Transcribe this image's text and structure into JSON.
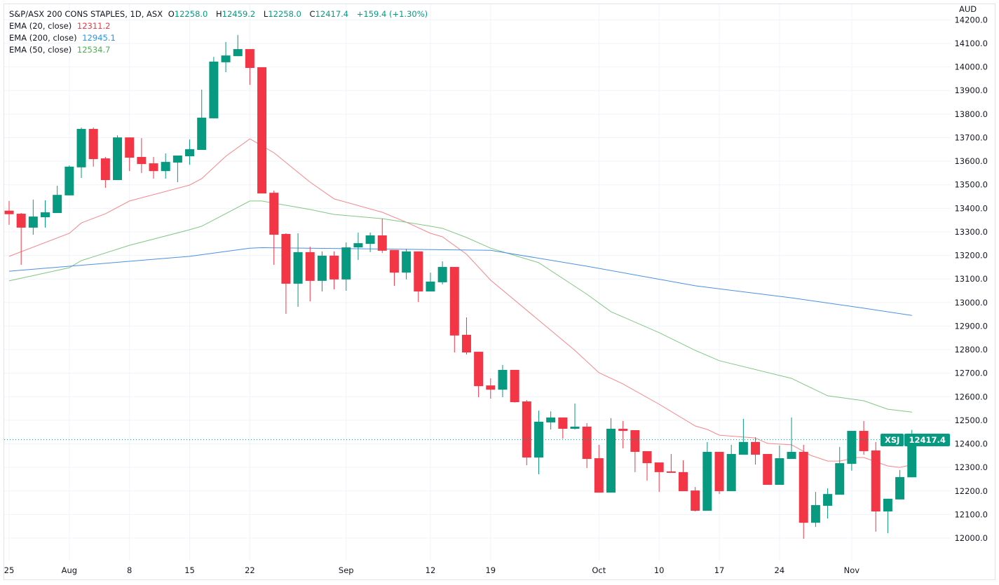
{
  "header": {
    "symbol_title": "S&P/ASX 200 CONS STAPLES, 1D, ASX",
    "open_label": "O",
    "open": "12258.0",
    "high_label": "H",
    "high": "12459.2",
    "low_label": "L",
    "low": "12258.0",
    "close_label": "C",
    "close": "12417.4",
    "change": "+159.4 (+1.30%)"
  },
  "indicators": [
    {
      "label": "EMA (20, close)",
      "value": "12311.2",
      "color": "#f23645"
    },
    {
      "label": "EMA (200, close)",
      "value": "12945.1",
      "color": "#2196f3"
    },
    {
      "label": "EMA (50, close)",
      "value": "12534.7",
      "color": "#4caf50"
    }
  ],
  "price_axis": {
    "currency": "AUD"
  },
  "last_price": {
    "ticker": "XSJ",
    "value": "12417.4",
    "price": 12417.4
  },
  "colors": {
    "up": "#089981",
    "down": "#f23645",
    "ema20": "#f7868a",
    "ema50": "#81c784",
    "ema200": "#4a90e2",
    "grid": "#f0f3fa"
  },
  "chart_data": {
    "type": "candlestick",
    "title": "S&P/ASX 200 CONS STAPLES, 1D, ASX",
    "ylim": [
      11950,
      14250
    ],
    "yticks": [
      12000,
      12100,
      12200,
      12300,
      12400,
      12500,
      12600,
      12700,
      12800,
      12900,
      13000,
      13100,
      13200,
      13300,
      13400,
      13500,
      13600,
      13700,
      13800,
      13900,
      14000,
      14100,
      14200
    ],
    "xticks": [
      {
        "index": 0,
        "label": "25"
      },
      {
        "index": 5,
        "label": "Aug"
      },
      {
        "index": 10,
        "label": "8"
      },
      {
        "index": 15,
        "label": "15"
      },
      {
        "index": 20,
        "label": "22"
      },
      {
        "index": 28,
        "label": "Sep"
      },
      {
        "index": 35,
        "label": "12"
      },
      {
        "index": 40,
        "label": "19"
      },
      {
        "index": 49,
        "label": "Oct"
      },
      {
        "index": 54,
        "label": "10"
      },
      {
        "index": 59,
        "label": "17"
      },
      {
        "index": 64,
        "label": "24"
      },
      {
        "index": 70,
        "label": "Nov"
      }
    ],
    "ohlc": [
      [
        13390,
        13431,
        13330,
        13375
      ],
      [
        13377,
        13380,
        13160,
        13318
      ],
      [
        13318,
        13437,
        13288,
        13365
      ],
      [
        13362,
        13434,
        13318,
        13383
      ],
      [
        13380,
        13496,
        13380,
        13457
      ],
      [
        13455,
        13582,
        13455,
        13577
      ],
      [
        13574,
        13743,
        13529,
        13737
      ],
      [
        13737,
        13743,
        13577,
        13609
      ],
      [
        13612,
        13618,
        13487,
        13520
      ],
      [
        13520,
        13710,
        13520,
        13701
      ],
      [
        13701,
        13701,
        13558,
        13615
      ],
      [
        13618,
        13698,
        13550,
        13588
      ],
      [
        13591,
        13618,
        13526,
        13558
      ],
      [
        13558,
        13633,
        13526,
        13597
      ],
      [
        13594,
        13624,
        13511,
        13624
      ],
      [
        13621,
        13692,
        13585,
        13651
      ],
      [
        13648,
        13904,
        13648,
        13785
      ],
      [
        13782,
        14043,
        13782,
        14023
      ],
      [
        14020,
        14106,
        13978,
        14049
      ],
      [
        14046,
        14136,
        14046,
        14076
      ],
      [
        14076,
        14076,
        13924,
        13996
      ],
      [
        13999,
        13999,
        13463,
        13463
      ],
      [
        13466,
        13475,
        13160,
        13288
      ],
      [
        13291,
        13294,
        12952,
        13080
      ],
      [
        13080,
        13294,
        12982,
        13214
      ],
      [
        13214,
        13237,
        13005,
        13092
      ],
      [
        13092,
        13217,
        13047,
        13199
      ],
      [
        13199,
        13217,
        13056,
        13098
      ],
      [
        13098,
        13255,
        13050,
        13234
      ],
      [
        13234,
        13297,
        13181,
        13252
      ],
      [
        13249,
        13297,
        13214,
        13285
      ],
      [
        13285,
        13356,
        13211,
        13220
      ],
      [
        13223,
        13223,
        13071,
        13127
      ],
      [
        13127,
        13228,
        13098,
        13217
      ],
      [
        13217,
        13217,
        13002,
        13047
      ],
      [
        13047,
        13127,
        13047,
        13089
      ],
      [
        13086,
        13175,
        13077,
        13151
      ],
      [
        13151,
        13151,
        12788,
        12860
      ],
      [
        12863,
        12937,
        12779,
        12788
      ],
      [
        12791,
        12791,
        12598,
        12645
      ],
      [
        12648,
        12678,
        12592,
        12630
      ],
      [
        12630,
        12735,
        12598,
        12714
      ],
      [
        12714,
        12714,
        12575,
        12577
      ],
      [
        12580,
        12586,
        12309,
        12342
      ],
      [
        12342,
        12541,
        12271,
        12494
      ],
      [
        12491,
        12538,
        12461,
        12512
      ],
      [
        12512,
        12512,
        12422,
        12464
      ],
      [
        12464,
        12571,
        12461,
        12473
      ],
      [
        12473,
        12488,
        12297,
        12336
      ],
      [
        12339,
        12396,
        12193,
        12193
      ],
      [
        12193,
        12509,
        12193,
        12464
      ],
      [
        12464,
        12497,
        12381,
        12455
      ],
      [
        12458,
        12458,
        12280,
        12366
      ],
      [
        12369,
        12369,
        12244,
        12318
      ],
      [
        12321,
        12321,
        12196,
        12280
      ],
      [
        12283,
        12357,
        12277,
        12277
      ],
      [
        12280,
        12330,
        12199,
        12199
      ],
      [
        12202,
        12217,
        12113,
        12116
      ],
      [
        12116,
        12408,
        12116,
        12366
      ],
      [
        12366,
        12366,
        12187,
        12199
      ],
      [
        12199,
        12396,
        12199,
        12357
      ],
      [
        12354,
        12506,
        12354,
        12408
      ],
      [
        12408,
        12428,
        12312,
        12354
      ],
      [
        12357,
        12357,
        12226,
        12226
      ],
      [
        12226,
        12393,
        12226,
        12339
      ],
      [
        12336,
        12512,
        12336,
        12366
      ],
      [
        12366,
        12396,
        11997,
        12065
      ],
      [
        12065,
        12196,
        12047,
        12140
      ],
      [
        12137,
        12211,
        12083,
        12187
      ],
      [
        12184,
        12387,
        12184,
        12318
      ],
      [
        12315,
        12455,
        12286,
        12455
      ],
      [
        12455,
        12497,
        12354,
        12369
      ],
      [
        12372,
        12408,
        12027,
        12113
      ],
      [
        12113,
        12167,
        12021,
        12167
      ],
      [
        12164,
        12289,
        12164,
        12259
      ],
      [
        12258,
        12459.2,
        12258,
        12417.4
      ]
    ],
    "series": [
      {
        "name": "EMA (20, close)",
        "key": "ema20",
        "points": [
          [
            0,
            13196
          ],
          [
            5,
            13294
          ],
          [
            6,
            13338
          ],
          [
            8,
            13377
          ],
          [
            10,
            13431
          ],
          [
            15,
            13499
          ],
          [
            16,
            13526
          ],
          [
            18,
            13621
          ],
          [
            20,
            13695
          ],
          [
            22,
            13636
          ],
          [
            25,
            13511
          ],
          [
            27,
            13440
          ],
          [
            31,
            13383
          ],
          [
            33,
            13341
          ],
          [
            35,
            13294
          ],
          [
            36,
            13279
          ],
          [
            38,
            13205
          ],
          [
            40,
            13095
          ],
          [
            47,
            12797
          ],
          [
            49,
            12702
          ],
          [
            51,
            12654
          ],
          [
            54,
            12568
          ],
          [
            57,
            12476
          ],
          [
            58,
            12461
          ],
          [
            59,
            12437
          ],
          [
            62,
            12425
          ],
          [
            63,
            12402
          ],
          [
            65,
            12396
          ],
          [
            66.6,
            12351
          ],
          [
            68,
            12327
          ],
          [
            69,
            12327
          ],
          [
            70.5,
            12342
          ],
          [
            71,
            12342
          ],
          [
            73,
            12306
          ],
          [
            74,
            12300
          ],
          [
            75,
            12311.2
          ]
        ]
      },
      {
        "name": "EMA (50, close)",
        "key": "ema50",
        "points": [
          [
            0,
            13092
          ],
          [
            5,
            13148
          ],
          [
            6,
            13178
          ],
          [
            10,
            13243
          ],
          [
            15,
            13309
          ],
          [
            16,
            13324
          ],
          [
            20,
            13431
          ],
          [
            21,
            13431
          ],
          [
            23,
            13413
          ],
          [
            25,
            13395
          ],
          [
            27,
            13374
          ],
          [
            31,
            13356
          ],
          [
            33,
            13341
          ],
          [
            35,
            13324
          ],
          [
            36,
            13315
          ],
          [
            38,
            13276
          ],
          [
            40,
            13231
          ],
          [
            44,
            13169
          ],
          [
            48,
            13035
          ],
          [
            50,
            12961
          ],
          [
            54,
            12872
          ],
          [
            57,
            12797
          ],
          [
            59,
            12753
          ],
          [
            65,
            12678
          ],
          [
            68,
            12604
          ],
          [
            71,
            12583
          ],
          [
            73,
            12547
          ],
          [
            75,
            12534.7
          ]
        ]
      },
      {
        "name": "EMA (200, close)",
        "key": "ema200",
        "points": [
          [
            0,
            13133
          ],
          [
            15,
            13196
          ],
          [
            20,
            13231
          ],
          [
            21,
            13233
          ],
          [
            40,
            13222
          ],
          [
            48,
            13154
          ],
          [
            57,
            13071
          ],
          [
            65,
            13020
          ],
          [
            71,
            12976
          ],
          [
            75,
            12945.1
          ]
        ]
      }
    ]
  }
}
